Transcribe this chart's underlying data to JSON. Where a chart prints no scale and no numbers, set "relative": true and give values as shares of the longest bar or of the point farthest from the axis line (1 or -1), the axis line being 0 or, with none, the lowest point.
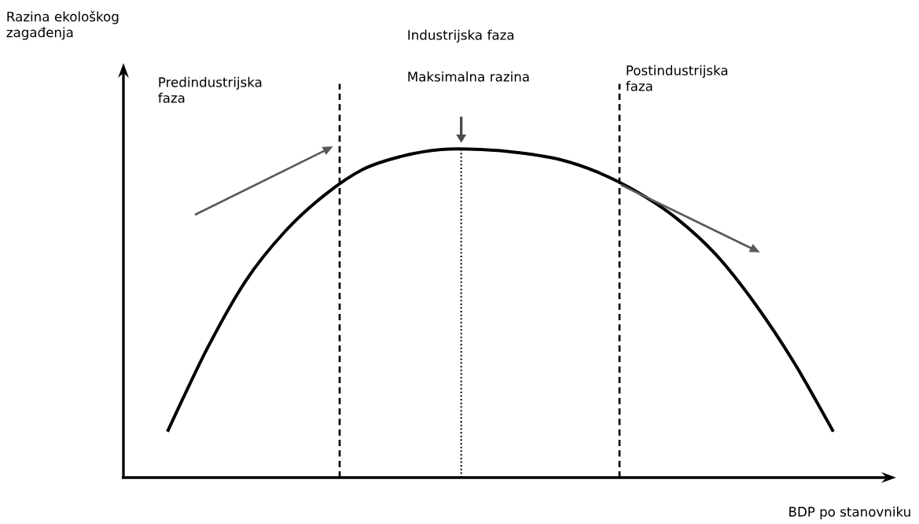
{
  "chart_data": {
    "type": "line",
    "relative": true,
    "categories": [
      null,
      null,
      null,
      null,
      null,
      null,
      null,
      null,
      null,
      null,
      null,
      null,
      null,
      null,
      null,
      null,
      null,
      null
    ],
    "values": [
      0.14,
      0.39,
      0.6,
      0.75,
      0.86,
      0.94,
      0.98,
      1.0,
      1.0,
      0.99,
      0.97,
      0.93,
      0.87,
      0.79,
      0.68,
      0.53,
      0.35,
      0.14
    ],
    "color": "#000000",
    "marker": "none",
    "line_style": "solid",
    "xlabel": "BDP po stanovniku",
    "annotations": [
      "Razina ekološkog zagađenja",
      "Predindustrijska faza",
      "Industrijska faza",
      "Maksimalna razina",
      "Postindustrijska faza"
    ]
  }
}
